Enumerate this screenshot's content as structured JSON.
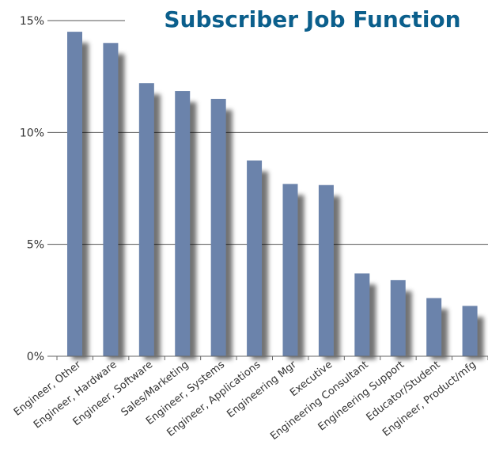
{
  "chart_data": {
    "type": "bar",
    "title": "Subscriber Job Function",
    "categories": [
      "Engineer, Other",
      "Engineer, Hardware",
      "Engineer, Software",
      "Sales/Marketing",
      "Engineer, Systems",
      "Engineer, Applications",
      "Engineering Mgr",
      "Executive",
      "Engineering Consultant",
      "Engineering Support",
      "Educator/Student",
      "Engineer, Product/mfg"
    ],
    "values": [
      14.5,
      14.0,
      12.2,
      11.85,
      11.5,
      8.75,
      7.7,
      7.65,
      3.7,
      3.4,
      2.6,
      2.25
    ],
    "y_ticks": [
      "0%",
      "5%",
      "10%",
      "15%"
    ],
    "ylim": [
      0,
      15
    ],
    "grid": true,
    "xlabel": "",
    "ylabel": ""
  },
  "colors": {
    "bar": "#6b83ab",
    "bar_shadow": "#000000",
    "title": "#0b5f8c",
    "grid": "#555555",
    "axis": "#666666"
  }
}
